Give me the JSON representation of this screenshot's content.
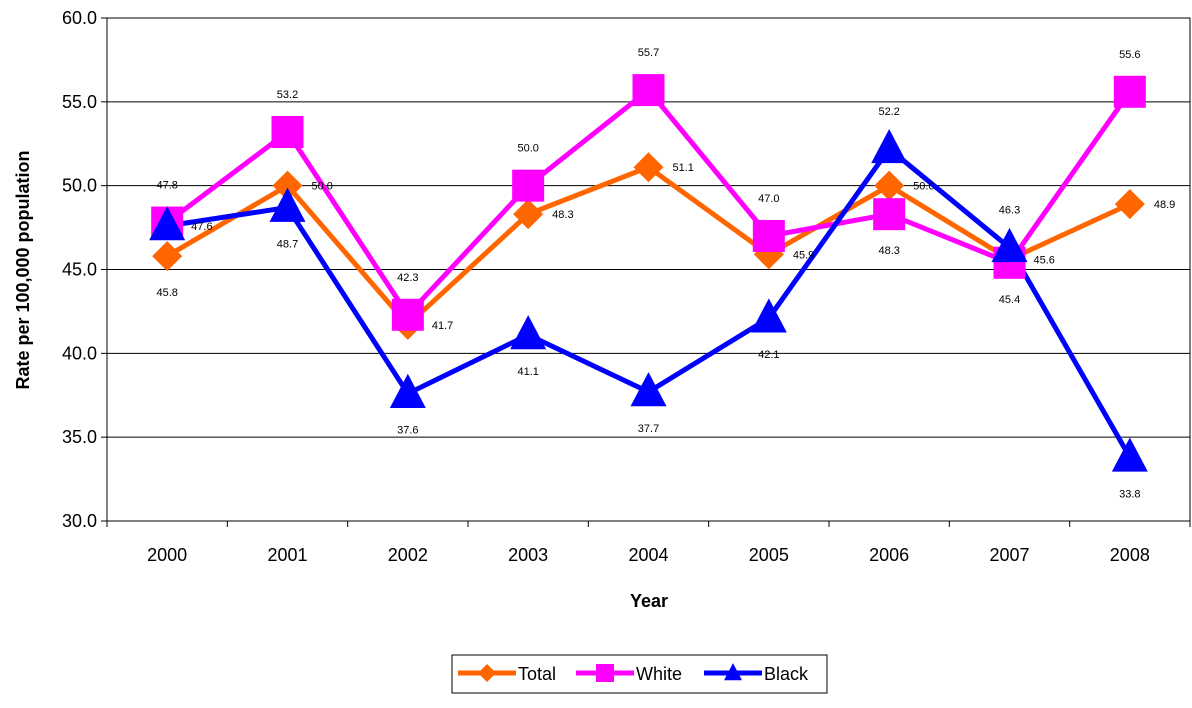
{
  "chart_data": {
    "type": "line",
    "title": "",
    "xlabel": "Year",
    "ylabel": "Rate per 100,000 population",
    "categories": [
      "2000",
      "2001",
      "2002",
      "2003",
      "2004",
      "2005",
      "2006",
      "2007",
      "2008"
    ],
    "ylim": [
      30.0,
      60.0
    ],
    "yticks": [
      "30.0",
      "35.0",
      "40.0",
      "45.0",
      "50.0",
      "55.0",
      "60.0"
    ],
    "grid": true,
    "legend": "bottom",
    "series": [
      {
        "name": "Total",
        "color": "#FF6600",
        "marker": "diamond",
        "values": [
          45.8,
          50.0,
          41.7,
          48.3,
          51.1,
          45.9,
          50.0,
          45.6,
          48.9
        ],
        "labels": [
          "45.8",
          "50.0",
          "41.7",
          "48.3",
          "51.1",
          "45.9",
          "50.0",
          "45.6",
          "48.9"
        ]
      },
      {
        "name": "White",
        "color": "#FF00FF",
        "marker": "square",
        "values": [
          47.8,
          53.2,
          42.3,
          50.0,
          55.7,
          47.0,
          48.3,
          45.4,
          55.6
        ],
        "labels": [
          "47.8",
          "53.2",
          "42.3",
          "50.0",
          "55.7",
          "47.0",
          "48.3",
          "45.4",
          "55.6"
        ]
      },
      {
        "name": "Black",
        "color": "#0000FF",
        "marker": "triangle",
        "values": [
          47.6,
          48.7,
          37.6,
          41.1,
          37.7,
          42.1,
          52.2,
          46.3,
          33.8
        ],
        "labels": [
          "47.6",
          "48.7",
          "37.6",
          "41.1",
          "37.7",
          "42.1",
          "52.2",
          "46.3",
          "33.8"
        ]
      }
    ]
  }
}
